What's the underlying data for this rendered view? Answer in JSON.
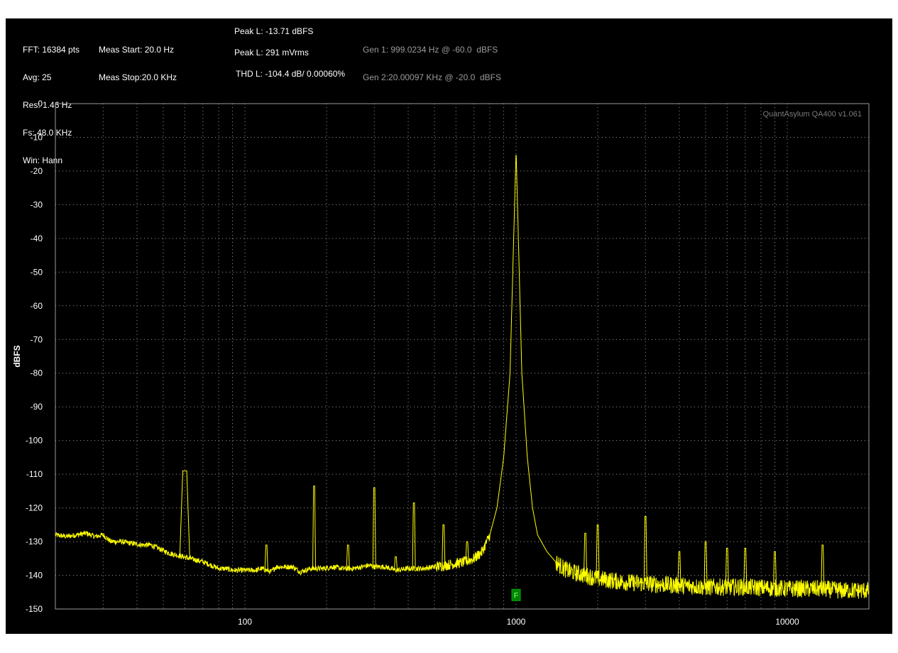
{
  "header": {
    "col1": [
      "FFT: 16384 pts",
      "Avg: 25",
      "Res: 1.46 Hz",
      "Fs: 48.0 KHz",
      "Win: Hann"
    ],
    "col2": [
      "Meas Start: 20.0 Hz",
      "Meas Stop:20.0 KHz"
    ],
    "peak_dbfs": "Peak L: -13.71 dBFS",
    "peak_vrms": "Peak L: 291 mVrms",
    "thd": "THD L: -104.4 dB/ 0.00060%",
    "gen1": "Gen 1: 999.0234 Hz @ -60.0  dBFS",
    "gen2": "Gen 2:20.00097 KHz @ -20.0  dBFS"
  },
  "watermark": "QuantAsylum QA400 v1.061",
  "marker_label": "F",
  "colors": {
    "background": "#000000",
    "trace": "#ffff00",
    "grid": "#9a9a9a",
    "marker": "#008000",
    "text": "#ffffff"
  },
  "chart_data": {
    "type": "line",
    "x_scale": "log",
    "grid": true,
    "xlim": [
      20,
      20000
    ],
    "ylim": [
      -150,
      0
    ],
    "ylabel": "dBFS",
    "xlabel": "",
    "xticks": [
      100,
      1000,
      10000
    ],
    "xtick_labels": [
      "100",
      "1000",
      "10000"
    ],
    "yticks": [
      0,
      -10,
      -20,
      -30,
      -40,
      -50,
      -60,
      -70,
      -80,
      -90,
      -100,
      -110,
      -120,
      -130,
      -140,
      -150
    ],
    "ytick_labels": [
      "0",
      "-10",
      "-20",
      "-30",
      "-40",
      "-50",
      "-60",
      "-70",
      "-80",
      "-90",
      "-100",
      "-110",
      "-120",
      "-130",
      "-140",
      "-150"
    ],
    "marker": {
      "label": "F",
      "x": 1000,
      "y": -145
    },
    "noise_floor_points": [
      [
        20,
        -128
      ],
      [
        22,
        -128.5
      ],
      [
        24,
        -128
      ],
      [
        26,
        -127.5
      ],
      [
        28,
        -128.5
      ],
      [
        30,
        -128
      ],
      [
        32,
        -130
      ],
      [
        35,
        -130
      ],
      [
        38,
        -130.5
      ],
      [
        42,
        -131
      ],
      [
        45,
        -131
      ],
      [
        48,
        -132
      ],
      [
        51,
        -133
      ],
      [
        53,
        -133.5
      ],
      [
        70,
        -136
      ],
      [
        75,
        -137
      ],
      [
        80,
        -138
      ],
      [
        85,
        -138
      ],
      [
        90,
        -138.5
      ],
      [
        95,
        -138.5
      ],
      [
        100,
        -138.5
      ],
      [
        110,
        -138.5
      ],
      [
        115,
        -138
      ],
      [
        125,
        -139
      ],
      [
        130,
        -137.5
      ],
      [
        140,
        -137.5
      ],
      [
        150,
        -137.5
      ],
      [
        160,
        -139
      ],
      [
        175,
        -138
      ],
      [
        195,
        -138
      ],
      [
        210,
        -137.5
      ],
      [
        230,
        -138
      ],
      [
        250,
        -138
      ],
      [
        270,
        -137.5
      ],
      [
        290,
        -137
      ],
      [
        300,
        -137.5
      ],
      [
        330,
        -137.5
      ],
      [
        360,
        -138.5
      ],
      [
        400,
        -138
      ],
      [
        450,
        -138
      ],
      [
        500,
        -137.5
      ],
      [
        550,
        -137
      ],
      [
        600,
        -136.5
      ],
      [
        650,
        -136
      ],
      [
        700,
        -135
      ],
      [
        750,
        -133
      ],
      [
        800,
        -128
      ],
      [
        850,
        -120
      ],
      [
        900,
        -105
      ],
      [
        950,
        -80
      ],
      [
        1000,
        -13.7
      ],
      [
        1050,
        -80
      ],
      [
        1100,
        -105
      ],
      [
        1150,
        -120
      ],
      [
        1200,
        -128
      ],
      [
        1300,
        -133
      ],
      [
        1400,
        -136
      ],
      [
        1500,
        -138
      ],
      [
        1600,
        -139
      ],
      [
        1800,
        -140
      ],
      [
        2000,
        -141
      ],
      [
        2500,
        -142
      ],
      [
        3000,
        -142.5
      ],
      [
        4000,
        -143
      ],
      [
        5000,
        -143.5
      ],
      [
        7000,
        -143.5
      ],
      [
        10000,
        -144
      ],
      [
        13000,
        -144
      ],
      [
        16000,
        -144.5
      ],
      [
        20000,
        -144.5
      ]
    ],
    "peaks": [
      {
        "x": 60,
        "y": -109
      },
      {
        "x": 120,
        "y": -131
      },
      {
        "x": 180,
        "y": -113.5
      },
      {
        "x": 240,
        "y": -131
      },
      {
        "x": 300,
        "y": -114
      },
      {
        "x": 360,
        "y": -134.5
      },
      {
        "x": 420,
        "y": -118.5
      },
      {
        "x": 540,
        "y": -125
      },
      {
        "x": 660,
        "y": -130
      },
      {
        "x": 1800,
        "y": -127.5
      },
      {
        "x": 2000,
        "y": -125
      },
      {
        "x": 3000,
        "y": -122.5
      },
      {
        "x": 4000,
        "y": -133
      },
      {
        "x": 5000,
        "y": -130
      },
      {
        "x": 6000,
        "y": -132
      },
      {
        "x": 7000,
        "y": -132
      },
      {
        "x": 9000,
        "y": -133
      },
      {
        "x": 13500,
        "y": -131
      }
    ]
  }
}
